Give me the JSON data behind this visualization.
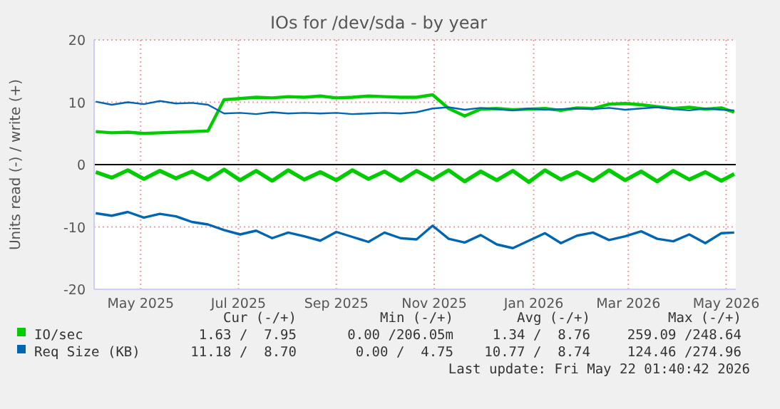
{
  "chart_data": {
    "type": "line",
    "title": "IOs for /dev/sda - by year",
    "ylabel": "Units read (-) / write (+)",
    "x": [
      "2025-04-18",
      "2025-04-28",
      "2025-05-08",
      "2025-05-18",
      "2025-05-28",
      "2025-06-07",
      "2025-06-17",
      "2025-06-27",
      "2025-07-07",
      "2025-07-17",
      "2025-07-27",
      "2025-08-06",
      "2025-08-16",
      "2025-08-26",
      "2025-09-05",
      "2025-09-15",
      "2025-09-25",
      "2025-10-05",
      "2025-10-15",
      "2025-10-25",
      "2025-11-04",
      "2025-11-14",
      "2025-11-24",
      "2025-12-04",
      "2025-12-14",
      "2025-12-24",
      "2026-01-03",
      "2026-01-13",
      "2026-01-23",
      "2026-02-02",
      "2026-02-12",
      "2026-02-22",
      "2026-03-04",
      "2026-03-14",
      "2026-03-24",
      "2026-04-03",
      "2026-04-13",
      "2026-04-23",
      "2026-05-03",
      "2026-05-13",
      "2026-05-21"
    ],
    "series": [
      {
        "color": "#00cc00",
        "values": [
          -1.2,
          -2.1,
          -0.9,
          -2.3,
          -1.0,
          -2.2,
          -1.1,
          -2.4,
          -0.8,
          -2.5,
          -1.0,
          -2.6,
          -0.9,
          -2.4,
          -1.2,
          -2.5,
          -0.9,
          -2.3,
          -1.1,
          -2.6,
          -1.0,
          -2.4,
          -0.9,
          -2.7,
          -1.1,
          -2.5,
          -1.0,
          -2.8,
          -0.9,
          -2.4,
          -1.2,
          -2.6,
          -0.9,
          -2.5,
          -1.1,
          -2.7,
          -1.0,
          -2.4,
          -1.2,
          -2.6,
          -1.5
        ]
      },
      {
        "name": "IO/sec",
        "color": "#00cc00",
        "values": [
          5.3,
          5.1,
          5.2,
          5.0,
          5.1,
          5.2,
          5.3,
          5.4,
          10.4,
          10.6,
          10.8,
          10.7,
          10.9,
          10.8,
          11.0,
          10.7,
          10.8,
          11.0,
          10.9,
          10.8,
          10.8,
          11.2,
          9.0,
          7.8,
          8.9,
          9.0,
          8.8,
          8.9,
          9.0,
          8.7,
          9.1,
          9.0,
          9.7,
          9.8,
          9.6,
          9.3,
          9.0,
          9.2,
          8.9,
          9.1,
          8.4
        ]
      },
      {
        "color": "#0066b3",
        "values": [
          -7.8,
          -8.2,
          -7.6,
          -8.5,
          -7.9,
          -8.3,
          -9.2,
          -9.6,
          -10.5,
          -11.2,
          -10.6,
          -11.8,
          -10.9,
          -11.5,
          -12.2,
          -10.8,
          -11.6,
          -12.4,
          -10.9,
          -11.8,
          -12.0,
          -9.8,
          -11.9,
          -12.5,
          -11.3,
          -12.8,
          -13.4,
          -12.2,
          -11.0,
          -12.6,
          -11.4,
          -10.9,
          -12.1,
          -11.5,
          -10.7,
          -11.9,
          -12.3,
          -11.2,
          -12.6,
          -11.0,
          -10.9
        ]
      },
      {
        "name": "Req Size (KB)",
        "color": "#0066b3",
        "values": [
          10.1,
          9.6,
          10.0,
          9.7,
          10.2,
          9.8,
          9.9,
          9.6,
          8.2,
          8.3,
          8.1,
          8.4,
          8.2,
          8.3,
          8.2,
          8.3,
          8.1,
          8.2,
          8.3,
          8.2,
          8.4,
          9.0,
          9.2,
          8.8,
          9.1,
          8.9,
          8.7,
          9.0,
          8.8,
          8.9,
          9.0,
          8.9,
          9.1,
          8.8,
          9.0,
          9.2,
          8.9,
          8.7,
          9.0,
          8.8,
          8.7
        ]
      }
    ],
    "xlim": [
      "2025-04-17",
      "2026-05-22"
    ],
    "xticks": [
      {
        "value": "2025-05-16",
        "label": "May 2025"
      },
      {
        "value": "2025-07-16",
        "label": "Jul 2025"
      },
      {
        "value": "2025-09-15",
        "label": "Sep 2025"
      },
      {
        "value": "2025-11-15",
        "label": "Nov 2025"
      },
      {
        "value": "2026-01-16",
        "label": "Jan 2026"
      },
      {
        "value": "2026-03-16",
        "label": "Mar 2026"
      },
      {
        "value": "2026-05-16",
        "label": "May 2026"
      }
    ],
    "ylim": [
      -20,
      20
    ],
    "yticks": [
      -20,
      -10,
      0,
      10,
      20
    ],
    "grid": true,
    "legend": "bottom",
    "ref_lines": [
      {
        "axis": "y",
        "value": 0,
        "color": "#000000"
      }
    ],
    "annotations": [
      "Cur (-/+)",
      "Min (-/+)",
      "Avg (-/+)",
      "Max (-/+)",
      "1.63 /  7.95",
      "0.00 /206.05m",
      "1.34 /  8.76",
      "259.09 /248.64",
      "11.18 /  8.70",
      "0.00 /  4.75",
      "10.77 /  8.74",
      "124.46 /274.96",
      "Last update: Fri May 22 01:40:42 2026"
    ]
  }
}
